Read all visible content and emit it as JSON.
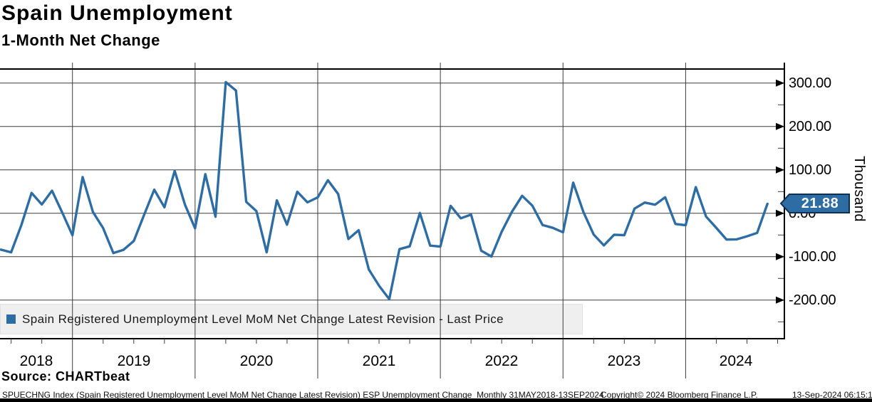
{
  "chart_data": {
    "type": "line",
    "title": "Spain Unemployment",
    "subtitle": "1-Month Net Change",
    "ylabel": "Thousand",
    "ylim": [
      -290,
      330
    ],
    "grid": true,
    "legend_position": "bottom-left",
    "line_color": "#2e6da4",
    "x": [
      "2018-05",
      "2018-06",
      "2018-07",
      "2018-08",
      "2018-09",
      "2018-10",
      "2018-11",
      "2018-12",
      "2019-01",
      "2019-02",
      "2019-03",
      "2019-04",
      "2019-05",
      "2019-06",
      "2019-07",
      "2019-08",
      "2019-09",
      "2019-10",
      "2019-11",
      "2019-12",
      "2020-01",
      "2020-02",
      "2020-03",
      "2020-04",
      "2020-05",
      "2020-06",
      "2020-07",
      "2020-08",
      "2020-09",
      "2020-10",
      "2020-11",
      "2020-12",
      "2021-01",
      "2021-02",
      "2021-03",
      "2021-04",
      "2021-05",
      "2021-06",
      "2021-07",
      "2021-08",
      "2021-09",
      "2021-10",
      "2021-11",
      "2021-12",
      "2022-01",
      "2022-02",
      "2022-03",
      "2022-04",
      "2022-05",
      "2022-06",
      "2022-07",
      "2022-08",
      "2022-09",
      "2022-10",
      "2022-11",
      "2022-12",
      "2023-01",
      "2023-02",
      "2023-03",
      "2023-04",
      "2023-05",
      "2023-06",
      "2023-07",
      "2023-08",
      "2023-09",
      "2023-10",
      "2023-11",
      "2023-12",
      "2024-01",
      "2024-02",
      "2024-03",
      "2024-04",
      "2024-05",
      "2024-06",
      "2024-07",
      "2024-08"
    ],
    "series": [
      {
        "name": "Spain Registered Unemployment Level MoM Net Change Latest Revision - Last Price",
        "values": [
          -83.7,
          -89.9,
          -27.1,
          47.0,
          20.4,
          52.2,
          1.6,
          -50.6,
          83.5,
          3.3,
          -33.9,
          -91.5,
          -84.1,
          -63.8,
          -4.3,
          54.4,
          13.9,
          97.9,
          20.5,
          -34.6,
          90.2,
          -7.8,
          302.3,
          282.9,
          26.6,
          5.1,
          -89.8,
          29.8,
          -26.3,
          49.6,
          25.3,
          36.8,
          76.2,
          44.4,
          -59.1,
          -39.0,
          -129.4,
          -166.9,
          -197.8,
          -82.6,
          -76.1,
          0.7,
          -74.4,
          -76.8,
          17.2,
          -11.4,
          -2.9,
          -86.3,
          -99.5,
          -42.4,
          3.2,
          40.4,
          17.7,
          -27.0,
          -33.5,
          -43.7,
          70.7,
          2.6,
          -48.8,
          -73.9,
          -49.3,
          -50.3,
          10.9,
          24.8,
          19.8,
          36.9,
          -24.6,
          -27.4,
          60.4,
          -7.5,
          -33.4,
          -60.5,
          -60.0,
          -53.0,
          -45.0,
          21.88
        ]
      }
    ],
    "last_price": 21.88,
    "y_major_gridlines": [
      300,
      200,
      100,
      0,
      -100,
      -200
    ],
    "y_minor_ticks": [
      250,
      150,
      50,
      -50,
      -150,
      -250
    ],
    "x_year_boundaries": [
      "2019",
      "2020",
      "2021",
      "2022",
      "2023",
      "2024"
    ]
  },
  "y_axis": {
    "ticks": [
      "300.00",
      "200.00",
      "100.00",
      "0.00",
      "-100.00",
      "-200.00"
    ]
  },
  "x_axis": {
    "years": [
      "2018",
      "2019",
      "2020",
      "2021",
      "2022",
      "2023",
      "2024"
    ]
  },
  "last_price_badge": {
    "value": "21.88",
    "fill": "#2e6da4",
    "border": "#10304f",
    "text_color": "#ffffff"
  },
  "source": {
    "label": "Source: CHARTbeat"
  },
  "footer": {
    "description": "SPUECHNG Index (Spain Registered Unemployment Level MoM Net Change Latest Revision) ESP Unemployment Change  Monthly 31MAY2018-13SEP2024",
    "copyright": "Copyright© 2024 Bloomberg Finance L.P.",
    "timestamp": "13-Sep-2024 06:15:11"
  }
}
